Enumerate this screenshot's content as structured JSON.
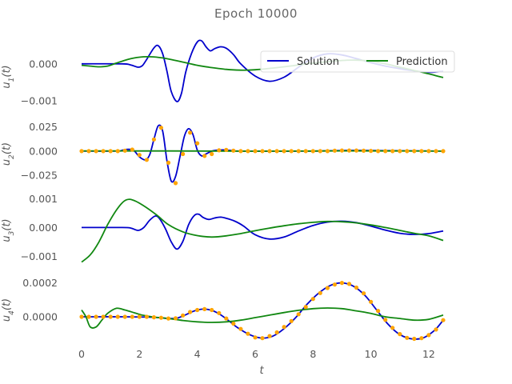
{
  "figure": {
    "title": "Epoch 10000",
    "xlabel": "t",
    "xticks": [
      "0",
      "2",
      "4",
      "6",
      "8",
      "10",
      "12"
    ],
    "legend": {
      "solution": "Solution",
      "prediction": "Prediction",
      "placement": "top-right"
    },
    "colors": {
      "solution": "#0000cc",
      "prediction": "#118811",
      "samples": "#ffa500"
    }
  },
  "chart_data": [
    {
      "type": "line",
      "ylabel": "u1(t)",
      "ylabel_main": "u",
      "ylabel_sub": "1",
      "ylabel_tail": "(t)",
      "xlim": [
        -0.6,
        13.2
      ],
      "ylim": [
        -0.0013,
        0.0006
      ],
      "yticks": [
        {
          "value": 0.0,
          "label": "0.000"
        },
        {
          "value": -0.001,
          "label": "−0.001"
        }
      ],
      "series": [
        {
          "name": "Solution",
          "x": [
            0,
            1.4,
            1.7,
            1.95,
            2.1,
            2.25,
            2.5,
            2.65,
            2.8,
            2.95,
            3.1,
            3.3,
            3.45,
            3.6,
            3.8,
            4.0,
            4.15,
            4.3,
            4.45,
            4.6,
            4.8,
            5.0,
            5.25,
            5.5,
            6.0,
            6.5,
            7.0,
            7.5,
            8.0,
            8.5,
            9.0,
            9.5,
            10.0,
            10.5,
            11.0,
            11.5,
            12.0,
            12.5
          ],
          "y": [
            0.0,
            0.0,
            -3e-05,
            -9e-05,
            -5e-05,
            0.00012,
            0.00043,
            0.00049,
            0.00028,
            -0.0002,
            -0.00075,
            -0.00102,
            -0.0008,
            -0.00022,
            0.00028,
            0.00059,
            0.00062,
            0.00046,
            0.00035,
            0.00041,
            0.00046,
            0.00042,
            0.00025,
            0.0,
            -0.00033,
            -0.00047,
            -0.00036,
            -9e-05,
            0.00016,
            0.00027,
            0.00024,
            0.00014,
            3e-05,
            -6e-05,
            -0.00013,
            -0.00019,
            -0.00023,
            -0.0002
          ]
        },
        {
          "name": "Prediction",
          "x": [
            0,
            0.3,
            0.6,
            0.9,
            1.2,
            1.6,
            2.0,
            2.4,
            2.8,
            3.2,
            3.6,
            4.0,
            4.4,
            5.0,
            5.5,
            6.0,
            7.0,
            8.0,
            9.0,
            9.5,
            10.0,
            10.5,
            11.0,
            11.5,
            12.0,
            12.5
          ],
          "y": [
            -4e-05,
            -6e-05,
            -8e-05,
            -6e-05,
            2e-05,
            0.00012,
            0.00018,
            0.00019,
            0.00016,
            0.0001,
            3e-05,
            -4e-05,
            -9e-05,
            -0.00015,
            -0.00017,
            -0.00016,
            -8e-05,
            2e-05,
            9e-05,
            0.0001,
            7e-05,
            0.0,
            -9e-05,
            -0.00018,
            -0.00027,
            -0.00037
          ]
        }
      ]
    },
    {
      "type": "line",
      "ylabel": "u2(t)",
      "ylabel_main": "u",
      "ylabel_sub": "2",
      "ylabel_tail": "(t)",
      "xlim": [
        -0.6,
        13.2
      ],
      "ylim": [
        -0.038,
        0.032
      ],
      "yticks": [
        {
          "value": 0.025,
          "label": "0.025"
        },
        {
          "value": 0.0,
          "label": "0.000"
        },
        {
          "value": -0.025,
          "label": "−0.025"
        }
      ],
      "series": [
        {
          "name": "Solution",
          "x": [
            0,
            1.2,
            1.4,
            1.6,
            1.8,
            2.0,
            2.2,
            2.35,
            2.5,
            2.65,
            2.8,
            2.95,
            3.1,
            3.25,
            3.4,
            3.55,
            3.7,
            3.85,
            4.0,
            4.15,
            4.3,
            4.5,
            4.7,
            4.9,
            5.1,
            5.3,
            5.6,
            6.0,
            8.0,
            9.0,
            10.0,
            12.5
          ],
          "y": [
            0.0,
            0.0,
            0.0008,
            0.0018,
            0.0008,
            -0.006,
            -0.009,
            -0.004,
            0.012,
            0.026,
            0.021,
            -0.01,
            -0.031,
            -0.026,
            -0.006,
            0.015,
            0.023,
            0.017,
            0.001,
            -0.005,
            -0.003,
            0.0,
            0.001,
            0.0012,
            0.0008,
            0.0002,
            0.0,
            0.0,
            0.0,
            0.0006,
            0.0006,
            0.0
          ]
        },
        {
          "name": "Prediction",
          "x": [
            0,
            3,
            6,
            9,
            12.5
          ],
          "y": [
            0.0002,
            0.0001,
            -0.0001,
            0.0002,
            0.0
          ]
        },
        {
          "name": "",
          "kind": "samples",
          "x": [
            0,
            0.25,
            0.5,
            0.75,
            1.0,
            1.25,
            1.5,
            1.75,
            2.0,
            2.25,
            2.5,
            2.75,
            3.0,
            3.25,
            3.5,
            3.75,
            4.0,
            4.25,
            4.5,
            4.75,
            5.0,
            5.25,
            5.5,
            5.75,
            6.0,
            6.25,
            6.5,
            6.75,
            7.0,
            7.25,
            7.5,
            7.75,
            8.0,
            8.25,
            8.5,
            8.75,
            9.0,
            9.25,
            9.5,
            9.75,
            10.0,
            10.25,
            10.5,
            10.75,
            11.0,
            11.25,
            11.5,
            11.75,
            12.0,
            12.25,
            12.5
          ],
          "y": [
            0,
            0,
            0,
            0,
            0,
            0,
            0.0005,
            0.0015,
            -0.004,
            -0.009,
            0.012,
            0.024,
            -0.012,
            -0.033,
            -0.003,
            0.019,
            0.008,
            -0.005,
            -0.003,
            0.0008,
            0.0012,
            0.0005,
            0,
            0,
            0,
            0,
            0,
            0,
            0,
            0,
            0,
            0,
            0,
            0,
            0,
            0.0005,
            0.0006,
            0.0006,
            0.0006,
            0.0004,
            0.0002,
            0,
            0,
            0,
            0,
            0,
            0,
            0,
            0,
            0,
            0
          ]
        }
      ]
    },
    {
      "type": "line",
      "ylabel": "u3(t)",
      "ylabel_main": "u",
      "ylabel_sub": "3",
      "ylabel_tail": "(t)",
      "xlim": [
        -0.6,
        13.2
      ],
      "ylim": [
        -0.00135,
        0.00115
      ],
      "yticks": [
        {
          "value": 0.001,
          "label": "0.001"
        },
        {
          "value": 0.0,
          "label": "0.000"
        },
        {
          "value": -0.001,
          "label": "−0.001"
        }
      ],
      "series": [
        {
          "name": "Solution",
          "x": [
            0,
            1.4,
            1.7,
            1.95,
            2.15,
            2.35,
            2.55,
            2.7,
            2.9,
            3.1,
            3.3,
            3.5,
            3.7,
            3.9,
            4.05,
            4.2,
            4.4,
            4.6,
            4.8,
            5.0,
            5.3,
            5.6,
            6.0,
            6.5,
            7.0,
            7.5,
            8.0,
            8.5,
            9.0,
            9.5,
            10.0,
            10.5,
            11.0,
            11.5,
            12.0,
            12.5
          ],
          "y": [
            0.0,
            0.0,
            -2e-05,
            -0.0001,
            0.0,
            0.00025,
            0.0004,
            0.0003,
            -5e-05,
            -0.0005,
            -0.00075,
            -0.00048,
            0.0001,
            0.00042,
            0.00046,
            0.00035,
            0.00028,
            0.00033,
            0.00036,
            0.00032,
            0.00022,
            5e-05,
            -0.00025,
            -0.0004,
            -0.00033,
            -0.00012,
            7e-05,
            0.00019,
            0.00022,
            0.00017,
            5e-05,
            -9e-05,
            -0.0002,
            -0.00024,
            -0.00021,
            -0.00012
          ]
        },
        {
          "name": "Prediction",
          "x": [
            0,
            0.3,
            0.6,
            0.9,
            1.2,
            1.45,
            1.65,
            1.9,
            2.2,
            2.6,
            3.0,
            3.5,
            4.0,
            4.5,
            5.0,
            5.5,
            6.0,
            6.5,
            7.0,
            7.5,
            8.0,
            8.5,
            9.0,
            9.5,
            10.0,
            10.5,
            11.0,
            11.5,
            12.0,
            12.5
          ],
          "y": [
            -0.0012,
            -0.00095,
            -0.0005,
            0.0001,
            0.0006,
            0.0009,
            0.00098,
            0.0009,
            0.00072,
            0.00043,
            0.0001,
            -0.00015,
            -0.00028,
            -0.00033,
            -0.00029,
            -0.00021,
            -0.00011,
            -2e-05,
            6e-05,
            0.00013,
            0.00018,
            0.00021,
            0.0002,
            0.00016,
            9e-05,
            0.0,
            -0.0001,
            -0.0002,
            -0.00029,
            -0.00045
          ]
        }
      ]
    },
    {
      "type": "line",
      "ylabel": "u4(t)",
      "ylabel_main": "u",
      "ylabel_sub": "4",
      "ylabel_tail": "(t)",
      "xlim": [
        -0.6,
        13.2
      ],
      "ylim": [
        -0.00017,
        0.00025
      ],
      "yticks": [
        {
          "value": 0.0002,
          "label": "0.0002"
        },
        {
          "value": 0.0,
          "label": "0.0000"
        }
      ],
      "series": [
        {
          "name": "Solution",
          "x": [
            0,
            1.5,
            2.5,
            3.0,
            3.3,
            3.6,
            3.9,
            4.2,
            4.5,
            4.8,
            5.1,
            5.4,
            5.8,
            6.2,
            6.6,
            7.0,
            7.4,
            7.8,
            8.2,
            8.6,
            9.0,
            9.4,
            9.8,
            10.2,
            10.6,
            11.0,
            11.4,
            11.8,
            12.2,
            12.5
          ],
          "y": [
            0.0,
            0.0,
            -3e-06,
            -1e-05,
            -8e-06,
            1.2e-05,
            3.5e-05,
            4.5e-05,
            3.8e-05,
            1.2e-05,
            -2.5e-05,
            -6.5e-05,
            -0.000105,
            -0.000125,
            -0.000115,
            -7e-05,
            -5e-06,
            7.5e-05,
            0.00014,
            0.000185,
            0.0002,
            0.00018,
            0.000125,
            4e-05,
            -4.5e-05,
            -0.000105,
            -0.00013,
            -0.000125,
            -8e-05,
            -2e-05
          ]
        },
        {
          "name": "Prediction",
          "x": [
            0,
            0.15,
            0.3,
            0.5,
            0.7,
            0.9,
            1.2,
            1.5,
            1.8,
            2.1,
            2.5,
            3.0,
            3.5,
            4.0,
            4.5,
            5.0,
            5.5,
            6.0,
            6.5,
            7.0,
            7.5,
            8.0,
            8.5,
            9.0,
            9.5,
            10.0,
            10.5,
            11.0,
            11.5,
            12.0,
            12.5
          ],
          "y": [
            4e-05,
            0.0,
            -6e-05,
            -6e-05,
            -2e-05,
            2e-05,
            5e-05,
            4e-05,
            2.5e-05,
            1e-05,
            -2e-06,
            -1e-05,
            -2.2e-05,
            -3e-05,
            -3.3e-05,
            -3e-05,
            -2e-05,
            -5e-06,
            1e-05,
            2.5e-05,
            3.8e-05,
            4.8e-05,
            5.2e-05,
            4.8e-05,
            3.5e-05,
            2e-05,
            0.0,
            -1e-05,
            -2e-05,
            -1.5e-05,
            1e-05
          ]
        },
        {
          "name": "",
          "kind": "samples",
          "x": [
            0,
            0.25,
            0.5,
            0.75,
            1.0,
            1.25,
            1.5,
            1.75,
            2.0,
            2.25,
            2.5,
            2.75,
            3.0,
            3.25,
            3.5,
            3.75,
            4.0,
            4.25,
            4.5,
            4.75,
            5.0,
            5.25,
            5.5,
            5.75,
            6.0,
            6.25,
            6.5,
            6.75,
            7.0,
            7.25,
            7.5,
            7.75,
            8.0,
            8.25,
            8.5,
            8.75,
            9.0,
            9.25,
            9.5,
            9.75,
            10.0,
            10.25,
            10.5,
            10.75,
            11.0,
            11.25,
            11.5,
            11.75,
            12.0,
            12.25,
            12.5
          ],
          "y": [
            0,
            0,
            0,
            0,
            0,
            0,
            0,
            0,
            0,
            0,
            -3e-06,
            -6e-06,
            -1e-05,
            -9e-06,
            8e-06,
            2.8e-05,
            4e-05,
            4.5e-05,
            4e-05,
            2.2e-05,
            -1e-05,
            -4e-05,
            -7.2e-05,
            -0.0001,
            -0.000122,
            -0.000126,
            -0.000114,
            -9.2e-05,
            -6e-05,
            -2.5e-05,
            1.5e-05,
            5.8e-05,
            0.000105,
            0.00014,
            0.00017,
            0.00019,
            0.0002,
            0.000194,
            0.000172,
            0.000138,
            8.8e-05,
            3.5e-05,
            -1.8e-05,
            -6.5e-05,
            -0.000102,
            -0.000124,
            -0.00013,
            -0.000126,
            -0.000108,
            -7.5e-05,
            -2e-05
          ]
        }
      ]
    }
  ]
}
